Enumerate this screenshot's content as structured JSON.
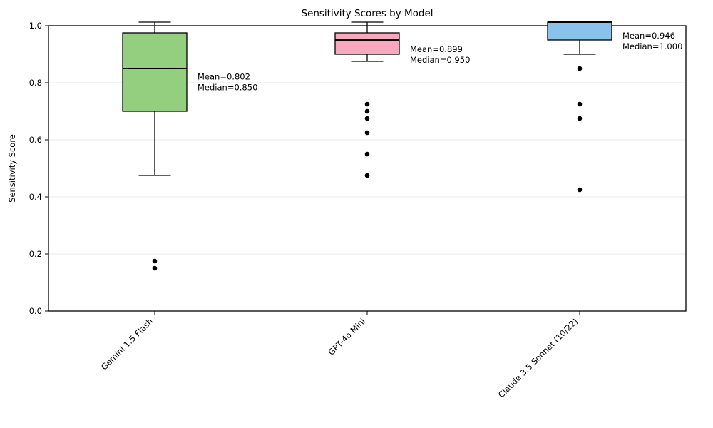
{
  "chart_data": {
    "type": "boxplot",
    "title": "Sensitivity Scores by Model",
    "xlabel": "",
    "ylabel": "Sensitivity Score",
    "ylim": [
      0.0,
      1.0
    ],
    "yticks": [
      0.0,
      0.2,
      0.4,
      0.6,
      0.8,
      1.0
    ],
    "ytick_labels": [
      "0.0",
      "0.2",
      "0.4",
      "0.6",
      "0.8",
      "1.0"
    ],
    "grid": {
      "axis": "y",
      "on": true,
      "color": "#e8e8e8"
    },
    "legend": "none",
    "xtick_rotation_deg": 45,
    "categories": [
      "Gemini 1.5 Flash",
      "GPT-4o Mini",
      "Claude 3.5 Sonnet (10/22)"
    ],
    "series": [
      {
        "category": "Gemini 1.5 Flash",
        "fill_color": "#94CF7F",
        "whisker_low": 0.475,
        "q1": 0.7,
        "median": 0.85,
        "q3": 0.975,
        "whisker_high": 1.0,
        "outliers": [
          0.175,
          0.15
        ],
        "mean": 0.802,
        "annotation_lines": [
          "Mean=0.802",
          "Median=0.850"
        ]
      },
      {
        "category": "GPT-4o Mini",
        "fill_color": "#F8A8BC",
        "whisker_low": 0.875,
        "q1": 0.9,
        "median": 0.95,
        "q3": 0.975,
        "whisker_high": 1.0,
        "outliers": [
          0.725,
          0.7,
          0.675,
          0.625,
          0.55,
          0.475
        ],
        "mean": 0.899,
        "annotation_lines": [
          "Mean=0.899",
          "Median=0.950"
        ]
      },
      {
        "category": "Claude 3.5 Sonnet (10/22)",
        "fill_color": "#87C3EA",
        "whisker_low": 0.9,
        "q1": 0.95,
        "median": 1.0,
        "q3": 1.0,
        "whisker_high": 1.0,
        "outliers": [
          0.85,
          0.725,
          0.675,
          0.425
        ],
        "mean": 0.946,
        "annotation_lines": [
          "Mean=0.946",
          "Median=1.000"
        ]
      }
    ],
    "style": {
      "edge_color": "#000000",
      "median_color": "#000000",
      "outlier_color": "#000000",
      "background": "#ffffff"
    }
  }
}
